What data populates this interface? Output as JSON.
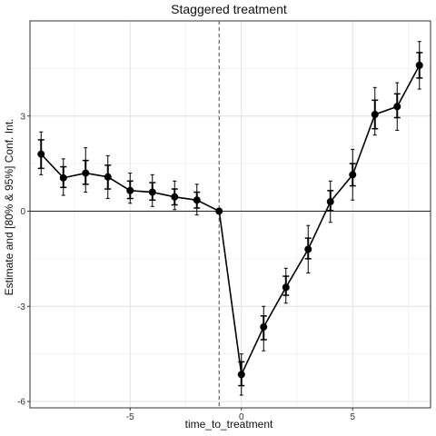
{
  "chart_data": {
    "type": "line",
    "title": "Staggered treatment",
    "xlabel": "time_to_treatment",
    "ylabel": "Estimate and [80% & 95%] Conf. Int.",
    "xlim": [
      -9.5,
      8.5
    ],
    "ylim": [
      -6.2,
      6.0
    ],
    "x_ticks": [
      -5,
      0,
      5
    ],
    "x_tick_labels": [
      "-5",
      "0",
      "5"
    ],
    "y_ticks": [
      -6,
      -3,
      0,
      3
    ],
    "y_tick_labels": [
      "-6",
      "-3",
      "0",
      "3"
    ],
    "grid": true,
    "reference_hline": 0,
    "reference_vline": -1,
    "series": [
      {
        "x": [
          -9,
          -8,
          -7,
          -6,
          -5,
          -4,
          -3,
          -2,
          -1,
          0,
          1,
          2,
          3,
          4,
          5,
          6,
          7,
          8
        ],
        "y": [
          1.8,
          1.05,
          1.2,
          1.08,
          0.65,
          0.6,
          0.45,
          0.35,
          0.0,
          -5.15,
          -3.65,
          -2.4,
          -1.2,
          0.3,
          1.15,
          3.05,
          3.3,
          4.6
        ],
        "ci80_low": [
          1.35,
          0.75,
          0.85,
          0.7,
          0.4,
          0.35,
          0.2,
          0.1,
          0.0,
          -5.5,
          -4.05,
          -2.65,
          -1.5,
          0.02,
          0.8,
          2.6,
          2.95,
          4.2
        ],
        "ci80_high": [
          2.25,
          1.4,
          1.6,
          1.45,
          0.95,
          0.9,
          0.7,
          0.6,
          0.0,
          -4.75,
          -3.3,
          -2.05,
          -0.85,
          0.65,
          1.5,
          3.5,
          3.7,
          5.0
        ],
        "ci95_low": [
          1.15,
          0.5,
          0.6,
          0.4,
          0.25,
          0.15,
          0.05,
          -0.12,
          0.0,
          -5.8,
          -4.4,
          -2.9,
          -1.95,
          -0.35,
          0.35,
          2.4,
          2.55,
          3.85
        ],
        "ci95_high": [
          2.5,
          1.65,
          2.0,
          1.75,
          1.2,
          1.15,
          0.95,
          0.85,
          0.0,
          -4.5,
          -3.0,
          -1.8,
          -0.45,
          0.95,
          1.95,
          3.9,
          4.05,
          5.35
        ]
      }
    ]
  }
}
